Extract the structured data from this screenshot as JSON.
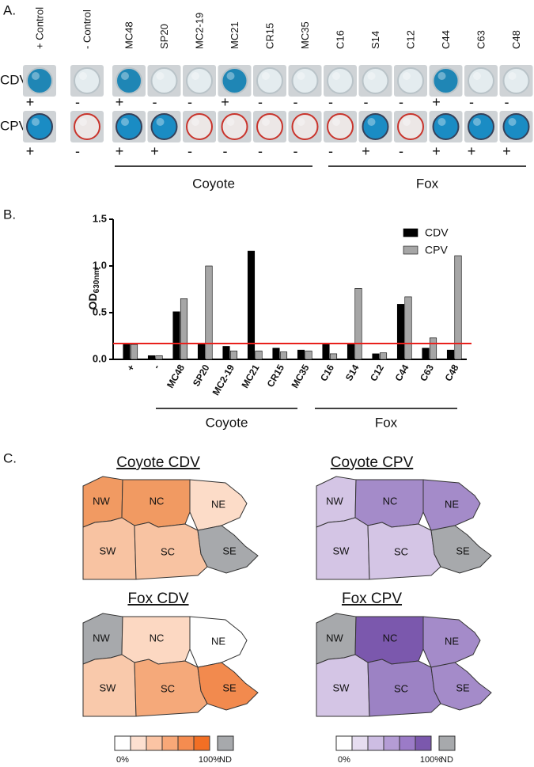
{
  "panel_a": {
    "label": "A.",
    "samples": [
      "+ Control",
      "- Control",
      "MC48",
      "SP20",
      "MC2-19",
      "MC21",
      "CR15",
      "MC35",
      "C16",
      "S14",
      "C12",
      "C44",
      "C63",
      "C48"
    ],
    "rows": [
      {
        "name": "CDV",
        "results": [
          "+",
          "-",
          "+",
          "-",
          "-",
          "+",
          "-",
          "-",
          "-",
          "-",
          "-",
          "+",
          "-",
          "-"
        ]
      },
      {
        "name": "CPV",
        "results": [
          "+",
          "-",
          "+",
          "+",
          "-",
          "-",
          "-",
          "-",
          "-",
          "+",
          "-",
          "+",
          "+",
          "+"
        ]
      }
    ],
    "groups": [
      "Coyote",
      "Fox"
    ]
  },
  "chart_data": {
    "type": "bar",
    "label": "B.",
    "y_label": "OD",
    "y_label_subscript": "630nm",
    "categories": [
      "+",
      "-",
      "MC48",
      "SP20",
      "MC2-19",
      "MC21",
      "CR15",
      "MC35",
      "C16",
      "S14",
      "C12",
      "C44",
      "C63",
      "C48"
    ],
    "series": [
      {
        "name": "CDV",
        "color": "#000000",
        "values": [
          0.16,
          0.04,
          0.51,
          0.17,
          0.14,
          1.16,
          0.12,
          0.1,
          0.16,
          0.17,
          0.06,
          0.59,
          0.12,
          0.1
        ]
      },
      {
        "name": "CPV",
        "color": "#a6a6a6",
        "values": [
          0.16,
          0.04,
          0.65,
          1.0,
          0.09,
          0.09,
          0.08,
          0.09,
          0.06,
          0.76,
          0.07,
          0.67,
          0.23,
          1.11
        ]
      }
    ],
    "threshold": 0.17,
    "threshold_color": "#e8201c",
    "ylim": [
      0,
      1.5
    ],
    "yticks": [
      {
        "value": 0,
        "label": "0.0"
      },
      {
        "value": 0.5,
        "label": "0.5"
      },
      {
        "value": 1,
        "label": "1.0"
      },
      {
        "value": 1.5,
        "label": "1.5"
      }
    ],
    "groups": [
      "Coyote",
      "Fox"
    ],
    "legend": "upper right"
  },
  "panel_c": {
    "label": "C.",
    "maps": [
      {
        "title": "Coyote CDV",
        "regions": [
          {
            "name": "NW",
            "color": "#f19a62"
          },
          {
            "name": "NC",
            "color": "#f19a62"
          },
          {
            "name": "NE",
            "color": "#fcdcc8"
          },
          {
            "name": "SW",
            "color": "#f8c3a2"
          },
          {
            "name": "SC",
            "color": "#f8c3a2"
          },
          {
            "name": "SE",
            "color": "#a7a9ac"
          }
        ]
      },
      {
        "title": "Coyote CPV",
        "regions": [
          {
            "name": "NW",
            "color": "#d4c5e5"
          },
          {
            "name": "NC",
            "color": "#a48bc9"
          },
          {
            "name": "NE",
            "color": "#a48bc9"
          },
          {
            "name": "SW",
            "color": "#d4c5e5"
          },
          {
            "name": "SC",
            "color": "#d4c5e5"
          },
          {
            "name": "SE",
            "color": "#a7a9ac"
          }
        ]
      },
      {
        "title": "Fox CDV",
        "regions": [
          {
            "name": "NW",
            "color": "#a7a9ac"
          },
          {
            "name": "NC",
            "color": "#fcd8c2"
          },
          {
            "name": "NE",
            "color": "#ffffff"
          },
          {
            "name": "SW",
            "color": "#f9c9ab"
          },
          {
            "name": "SC",
            "color": "#f5a97a"
          },
          {
            "name": "SE",
            "color": "#f28a4e"
          }
        ]
      },
      {
        "title": "Fox CPV",
        "regions": [
          {
            "name": "NW",
            "color": "#a7a9ac"
          },
          {
            "name": "NC",
            "color": "#7b58ad"
          },
          {
            "name": "NE",
            "color": "#a48bc9"
          },
          {
            "name": "SW",
            "color": "#d4c5e5"
          },
          {
            "name": "SC",
            "color": "#9c82c4"
          },
          {
            "name": "SE",
            "color": "#a48bc9"
          }
        ]
      }
    ],
    "legends": [
      {
        "colors": [
          "#ffffff",
          "#fde0d0",
          "#fbc4a4",
          "#f8a878",
          "#f58c50",
          "#f26f24"
        ],
        "min_label": "0%",
        "max_label": "100%",
        "nd_label": "ND",
        "nd_color": "#a7a9ac"
      },
      {
        "colors": [
          "#ffffff",
          "#e6ddf0",
          "#cdbde3",
          "#b49cd5",
          "#9b7bc7",
          "#7b58ad"
        ],
        "min_label": "0%",
        "max_label": "100%",
        "nd_label": "ND",
        "nd_color": "#a7a9ac"
      }
    ]
  }
}
